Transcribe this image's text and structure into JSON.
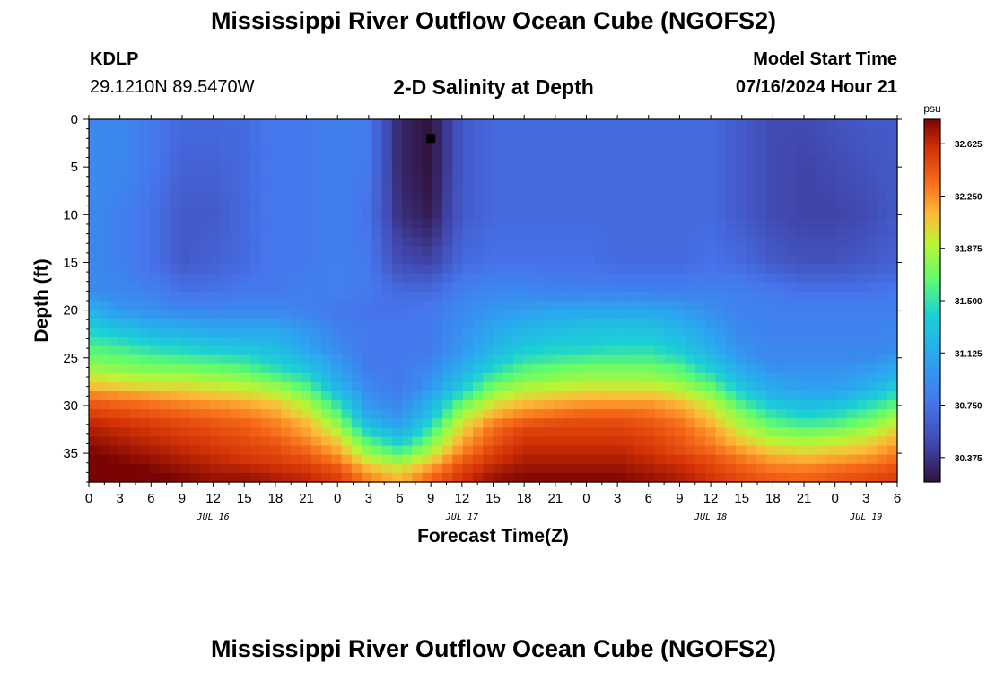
{
  "header": {
    "title": "Mississippi River Outflow Ocean Cube (NGOFS2)",
    "station": "KDLP",
    "coords": "29.1210N  89.5470W",
    "subtitle": "2-D Salinity at Depth",
    "model_start_label": "Model Start Time",
    "model_start_value": "07/16/2024 Hour 21"
  },
  "footer": {
    "title": "Mississippi River Outflow Ocean Cube (NGOFS2)"
  },
  "chart_data": {
    "type": "heatmap",
    "xlabel": "Forecast Time(Z)",
    "ylabel": "Depth (ft)",
    "x_unit": "hours (Z)",
    "x_tick_labels": [
      "0",
      "3",
      "6",
      "9",
      "12",
      "15",
      "18",
      "21",
      "0",
      "3",
      "6",
      "9",
      "12",
      "15",
      "18",
      "21",
      "0",
      "3",
      "6",
      "9",
      "12",
      "15",
      "18",
      "21",
      "0",
      "3",
      "6"
    ],
    "date_labels": [
      {
        "label": "JUL 16",
        "at_tick": 4
      },
      {
        "label": "JUL 17",
        "at_tick": 12
      },
      {
        "label": "JUL 18",
        "at_tick": 20
      },
      {
        "label": "JUL 19",
        "at_tick": 25
      }
    ],
    "y_tick_labels": [
      "0",
      "5",
      "10",
      "15",
      "20",
      "25",
      "30",
      "35"
    ],
    "ylim": [
      0,
      38
    ],
    "y_inverted": true,
    "colorbar": {
      "unit": "psu",
      "ticks": [
        "32.625",
        "32.250",
        "31.875",
        "31.500",
        "31.125",
        "30.750",
        "30.375"
      ],
      "range": [
        30.2,
        32.8
      ]
    },
    "marker": {
      "label": "station depth",
      "hours": 81,
      "depth_ft": 2
    },
    "columns_hours": [
      48,
      51,
      54,
      57,
      60,
      63,
      66,
      69,
      72,
      75,
      78,
      81,
      84,
      87,
      90,
      93,
      96,
      99,
      102,
      105,
      108,
      111,
      114,
      117,
      120,
      123,
      126
    ],
    "rows_depth_ft": [
      0,
      5,
      10,
      15,
      18,
      20,
      22,
      24,
      25,
      26,
      27,
      28,
      29,
      30,
      31,
      32,
      33,
      34,
      35,
      36,
      37,
      38
    ],
    "salinity_psu": [
      [
        30.9,
        30.9,
        30.8,
        30.7,
        30.7,
        30.7,
        30.8,
        30.8,
        30.85,
        30.8,
        30.3,
        30.2,
        30.6,
        30.7,
        30.7,
        30.7,
        30.7,
        30.7,
        30.7,
        30.7,
        30.7,
        30.6,
        30.5,
        30.5,
        30.55,
        30.6,
        30.6
      ],
      [
        30.9,
        30.9,
        30.8,
        30.65,
        30.65,
        30.7,
        30.8,
        30.8,
        30.85,
        30.8,
        30.3,
        30.2,
        30.6,
        30.7,
        30.7,
        30.7,
        30.7,
        30.7,
        30.7,
        30.7,
        30.7,
        30.6,
        30.5,
        30.45,
        30.5,
        30.55,
        30.6
      ],
      [
        30.9,
        30.85,
        30.75,
        30.6,
        30.6,
        30.7,
        30.8,
        30.8,
        30.85,
        30.75,
        30.35,
        30.25,
        30.6,
        30.7,
        30.7,
        30.7,
        30.7,
        30.7,
        30.7,
        30.7,
        30.7,
        30.6,
        30.5,
        30.45,
        30.45,
        30.5,
        30.6
      ],
      [
        30.9,
        30.85,
        30.75,
        30.6,
        30.65,
        30.7,
        30.8,
        30.8,
        30.85,
        30.8,
        30.5,
        30.45,
        30.7,
        30.75,
        30.75,
        30.75,
        30.75,
        30.7,
        30.7,
        30.7,
        30.75,
        30.7,
        30.6,
        30.55,
        30.55,
        30.6,
        30.65
      ],
      [
        30.9,
        30.9,
        30.85,
        30.75,
        30.75,
        30.8,
        30.8,
        30.85,
        30.85,
        30.8,
        30.7,
        30.7,
        30.85,
        30.9,
        30.9,
        30.85,
        30.85,
        30.85,
        30.85,
        30.85,
        30.85,
        30.85,
        30.8,
        30.75,
        30.75,
        30.75,
        30.8
      ],
      [
        31.2,
        31.0,
        30.95,
        30.9,
        30.9,
        30.9,
        30.9,
        30.85,
        30.8,
        30.75,
        30.75,
        30.8,
        30.9,
        31.0,
        31.05,
        31.1,
        31.1,
        31.1,
        31.1,
        31.05,
        30.95,
        30.85,
        30.85,
        30.85,
        30.85,
        30.85,
        30.85
      ],
      [
        31.4,
        31.3,
        31.2,
        31.15,
        31.1,
        31.1,
        31.1,
        31.0,
        30.85,
        30.8,
        30.8,
        30.8,
        30.95,
        31.1,
        31.2,
        31.25,
        31.3,
        31.3,
        31.3,
        31.2,
        31.05,
        30.9,
        30.85,
        30.85,
        30.85,
        30.85,
        30.9
      ],
      [
        31.6,
        31.55,
        31.45,
        31.4,
        31.35,
        31.3,
        31.25,
        31.1,
        30.9,
        30.8,
        30.8,
        30.8,
        31.0,
        31.2,
        31.35,
        31.4,
        31.4,
        31.45,
        31.45,
        31.35,
        31.15,
        30.95,
        30.9,
        30.9,
        30.9,
        30.9,
        30.9
      ],
      [
        31.7,
        31.65,
        31.6,
        31.55,
        31.5,
        31.45,
        31.35,
        31.2,
        31.0,
        30.8,
        30.8,
        30.85,
        31.05,
        31.3,
        31.45,
        31.5,
        31.55,
        31.55,
        31.55,
        31.45,
        31.25,
        31.0,
        30.9,
        30.9,
        30.9,
        30.9,
        31.0
      ],
      [
        31.8,
        31.75,
        31.7,
        31.7,
        31.65,
        31.6,
        31.45,
        31.3,
        31.05,
        30.8,
        30.8,
        30.9,
        31.15,
        31.4,
        31.6,
        31.65,
        31.7,
        31.7,
        31.7,
        31.6,
        31.35,
        31.1,
        30.95,
        30.95,
        30.95,
        31.0,
        31.1
      ],
      [
        31.95,
        31.9,
        31.85,
        31.85,
        31.8,
        31.75,
        31.6,
        31.45,
        31.1,
        30.85,
        30.8,
        30.95,
        31.25,
        31.55,
        31.7,
        31.75,
        31.8,
        31.8,
        31.8,
        31.7,
        31.5,
        31.2,
        31.05,
        31.0,
        31.0,
        31.1,
        31.2
      ],
      [
        32.1,
        32.05,
        32.0,
        32.0,
        31.95,
        31.9,
        31.8,
        31.6,
        31.2,
        30.9,
        30.8,
        31.0,
        31.35,
        31.7,
        31.85,
        31.9,
        31.95,
        31.95,
        31.95,
        31.85,
        31.65,
        31.3,
        31.1,
        31.05,
        31.05,
        31.15,
        31.35
      ],
      [
        32.3,
        32.25,
        32.2,
        32.15,
        32.1,
        32.05,
        31.95,
        31.75,
        31.35,
        30.95,
        30.85,
        31.1,
        31.5,
        31.85,
        32.0,
        32.05,
        32.1,
        32.1,
        32.1,
        32.0,
        31.8,
        31.45,
        31.2,
        31.15,
        31.15,
        31.3,
        31.5
      ],
      [
        32.45,
        32.4,
        32.35,
        32.3,
        32.25,
        32.2,
        32.1,
        31.9,
        31.5,
        31.0,
        30.9,
        31.2,
        31.7,
        32.0,
        32.15,
        32.2,
        32.25,
        32.25,
        32.25,
        32.15,
        31.95,
        31.6,
        31.35,
        31.25,
        31.3,
        31.45,
        31.65
      ],
      [
        32.55,
        32.5,
        32.45,
        32.4,
        32.35,
        32.3,
        32.2,
        32.0,
        31.65,
        31.1,
        30.95,
        31.3,
        31.85,
        32.15,
        32.3,
        32.35,
        32.4,
        32.4,
        32.35,
        32.25,
        32.05,
        31.75,
        31.5,
        31.4,
        31.45,
        31.6,
        31.8
      ],
      [
        32.65,
        32.6,
        32.55,
        32.5,
        32.45,
        32.4,
        32.3,
        32.15,
        31.8,
        31.25,
        31.05,
        31.45,
        32.0,
        32.3,
        32.45,
        32.5,
        32.5,
        32.5,
        32.45,
        32.35,
        32.15,
        31.85,
        31.65,
        31.55,
        31.6,
        31.75,
        31.95
      ],
      [
        32.7,
        32.65,
        32.6,
        32.55,
        32.5,
        32.45,
        32.35,
        32.2,
        31.95,
        31.45,
        31.2,
        31.6,
        32.1,
        32.4,
        32.55,
        32.55,
        32.55,
        32.55,
        32.5,
        32.4,
        32.25,
        32.0,
        31.8,
        31.75,
        31.8,
        31.9,
        32.1
      ],
      [
        32.75,
        32.7,
        32.65,
        32.6,
        32.55,
        32.5,
        32.45,
        32.3,
        32.1,
        31.65,
        31.4,
        31.75,
        32.2,
        32.45,
        32.6,
        32.6,
        32.6,
        32.6,
        32.55,
        32.45,
        32.3,
        32.1,
        31.95,
        31.9,
        31.95,
        32.05,
        32.2
      ],
      [
        32.8,
        32.75,
        32.7,
        32.65,
        32.6,
        32.55,
        32.5,
        32.4,
        32.2,
        31.8,
        31.6,
        31.9,
        32.3,
        32.55,
        32.65,
        32.65,
        32.65,
        32.65,
        32.6,
        32.5,
        32.4,
        32.25,
        32.1,
        32.05,
        32.1,
        32.15,
        32.3
      ],
      [
        32.85,
        32.8,
        32.75,
        32.7,
        32.65,
        32.6,
        32.55,
        32.5,
        32.35,
        32.0,
        31.85,
        32.1,
        32.45,
        32.6,
        32.7,
        32.7,
        32.7,
        32.7,
        32.65,
        32.6,
        32.5,
        32.35,
        32.25,
        32.2,
        32.25,
        32.3,
        32.4
      ],
      [
        32.9,
        32.9,
        32.8,
        32.75,
        32.7,
        32.7,
        32.65,
        32.6,
        32.5,
        32.2,
        32.05,
        32.3,
        32.55,
        32.7,
        32.75,
        32.75,
        32.75,
        32.75,
        32.7,
        32.65,
        32.55,
        32.45,
        32.35,
        32.35,
        32.4,
        32.45,
        32.5
      ],
      [
        32.95,
        32.95,
        32.85,
        32.8,
        32.75,
        32.75,
        32.7,
        32.65,
        32.55,
        32.3,
        32.15,
        32.4,
        32.6,
        32.75,
        32.8,
        32.8,
        32.8,
        32.8,
        32.75,
        32.7,
        32.6,
        32.5,
        32.45,
        32.4,
        32.45,
        32.5,
        32.55
      ]
    ]
  }
}
